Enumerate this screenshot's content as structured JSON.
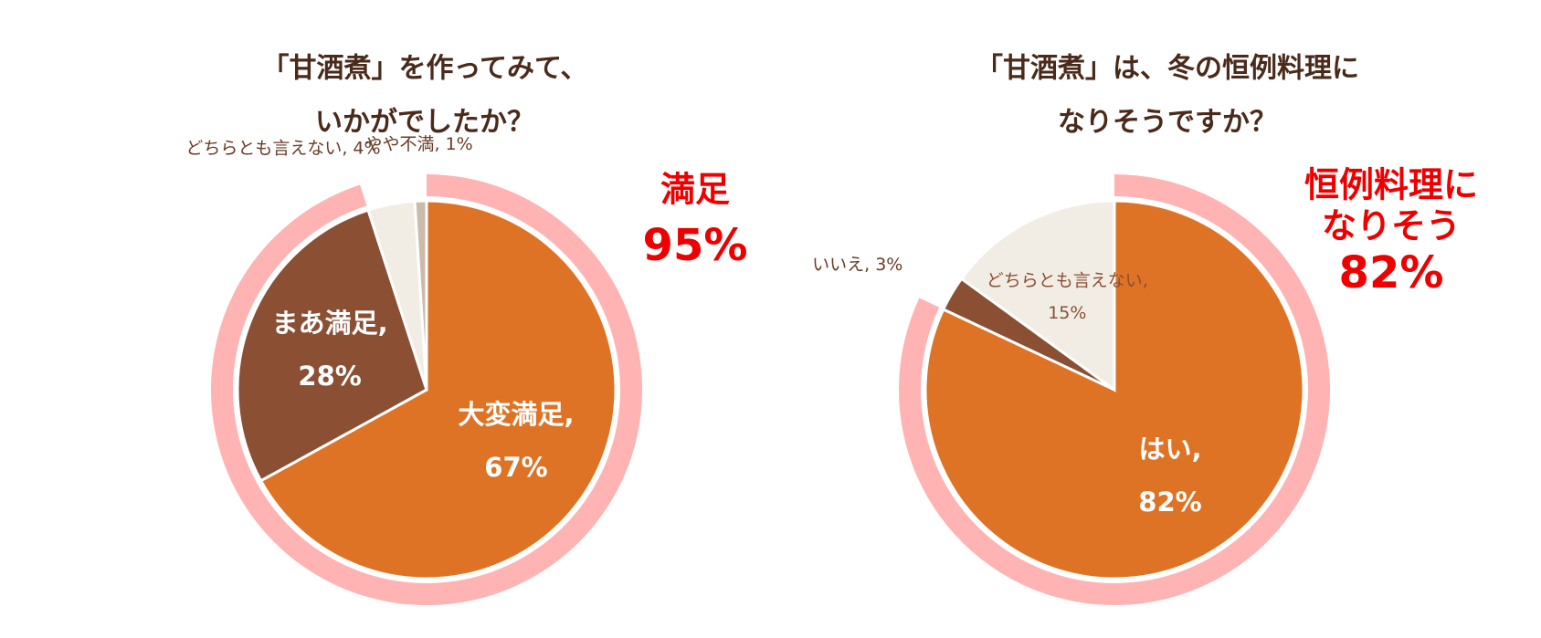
{
  "chart_data": [
    {
      "type": "pie",
      "title": [
        "「甘酒煮」を作ってみて、",
        "いかがでしたか？"
      ],
      "categories": [
        "大変満足",
        "まあ満足",
        "どちらとも言えない",
        "やや不満"
      ],
      "values": [
        67,
        28,
        4,
        1
      ],
      "value_labels": [
        "67%",
        "28%",
        "4%",
        "1%"
      ],
      "label_separator": ",",
      "colors": [
        "#DE7325",
        "#8B4F33",
        "#F2EDE4",
        "#CBBBAA"
      ],
      "highlight": {
        "lines": [
          "満足",
          "95%"
        ],
        "value": 95,
        "color": "#FFB3B3",
        "text_color": "#EE0000"
      }
    },
    {
      "type": "pie",
      "title": [
        "「甘酒煮」は、冬の恒例料理に",
        "なりそうですか？"
      ],
      "categories": [
        "はい",
        "いいえ",
        "どちらとも言えない"
      ],
      "values": [
        82,
        3,
        15
      ],
      "value_labels": [
        "82%",
        "3%",
        "15%"
      ],
      "label_separator": ",",
      "colors": [
        "#DE7325",
        "#8B4F33",
        "#F2EDE4"
      ],
      "highlight": {
        "lines": [
          "恒例料理に",
          "なりそう",
          "82%"
        ],
        "value": 82,
        "color": "#FFB3B3",
        "text_color": "#EE0000"
      }
    }
  ]
}
